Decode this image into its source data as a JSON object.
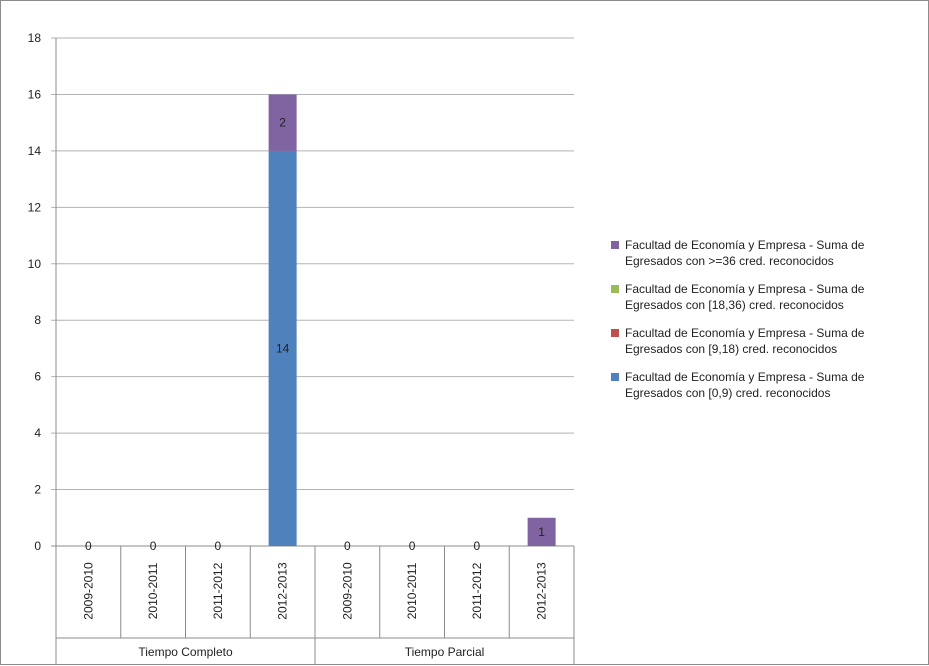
{
  "chart_data": {
    "type": "bar",
    "stacked": true,
    "groups": [
      {
        "label": "Tiempo Completo",
        "categories": [
          "2009-2010",
          "2010-2011",
          "2011-2012",
          "2012-2013"
        ]
      },
      {
        "label": "Tiempo Parcial",
        "categories": [
          "2009-2010",
          "2010-2011",
          "2011-2012",
          "2012-2013"
        ]
      }
    ],
    "categories": [
      "2009-2010",
      "2010-2011",
      "2011-2012",
      "2012-2013",
      "2009-2010",
      "2010-2011",
      "2011-2012",
      "2012-2013"
    ],
    "series": [
      {
        "name": "Facultad de Economía y Empresa - Suma de Egresados con [0,9) cred. reconocidos",
        "color": "#4f81bd",
        "values": [
          0,
          0,
          0,
          14,
          0,
          0,
          0,
          0
        ]
      },
      {
        "name": "Facultad de Economía y Empresa - Suma de Egresados con [9,18) cred. reconocidos",
        "color": "#c0504d",
        "values": [
          0,
          0,
          0,
          0,
          0,
          0,
          0,
          0
        ]
      },
      {
        "name": "Facultad de Economía y Empresa - Suma de Egresados con [18,36) cred. reconocidos",
        "color": "#9bbb59",
        "values": [
          0,
          0,
          0,
          0,
          0,
          0,
          0,
          0
        ]
      },
      {
        "name": "Facultad de Economía y Empresa - Suma de Egresados con >=36 cred. reconocidos",
        "color": "#8064a2",
        "values": [
          0,
          0,
          0,
          2,
          0,
          0,
          0,
          1
        ]
      }
    ],
    "zero_labels": [
      "0",
      "0",
      "0",
      "0",
      "0",
      "0"
    ],
    "ylim": [
      0,
      18
    ],
    "yticks": [
      0,
      2,
      4,
      6,
      8,
      10,
      12,
      14,
      16,
      18
    ],
    "grid": true,
    "legend_position": "right",
    "legend_order": [
      3,
      2,
      1,
      0
    ]
  }
}
